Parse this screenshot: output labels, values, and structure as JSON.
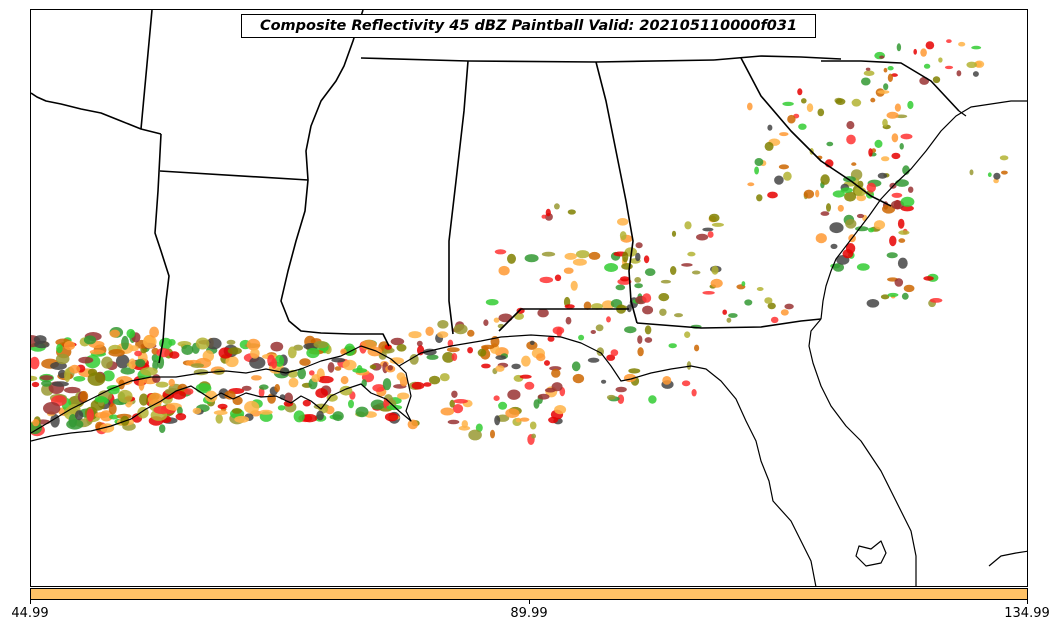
{
  "title": "Composite Reflectivity 45 dBZ Paintball Valid: 202105110000f031",
  "colorbar": {
    "color": "#ffc266",
    "tick_labels": [
      "44.99",
      "89.99",
      "134.99"
    ],
    "values": [
      44.99,
      89.99,
      134.99
    ]
  },
  "paintball_colors": [
    "#ff9933",
    "#e60000",
    "#ff3333",
    "#33cc33",
    "#339933",
    "#999933",
    "#b3b333",
    "#993333",
    "#444444",
    "#ffb347",
    "#cc6600",
    "#808000"
  ],
  "map_region": "Southeastern United States"
}
